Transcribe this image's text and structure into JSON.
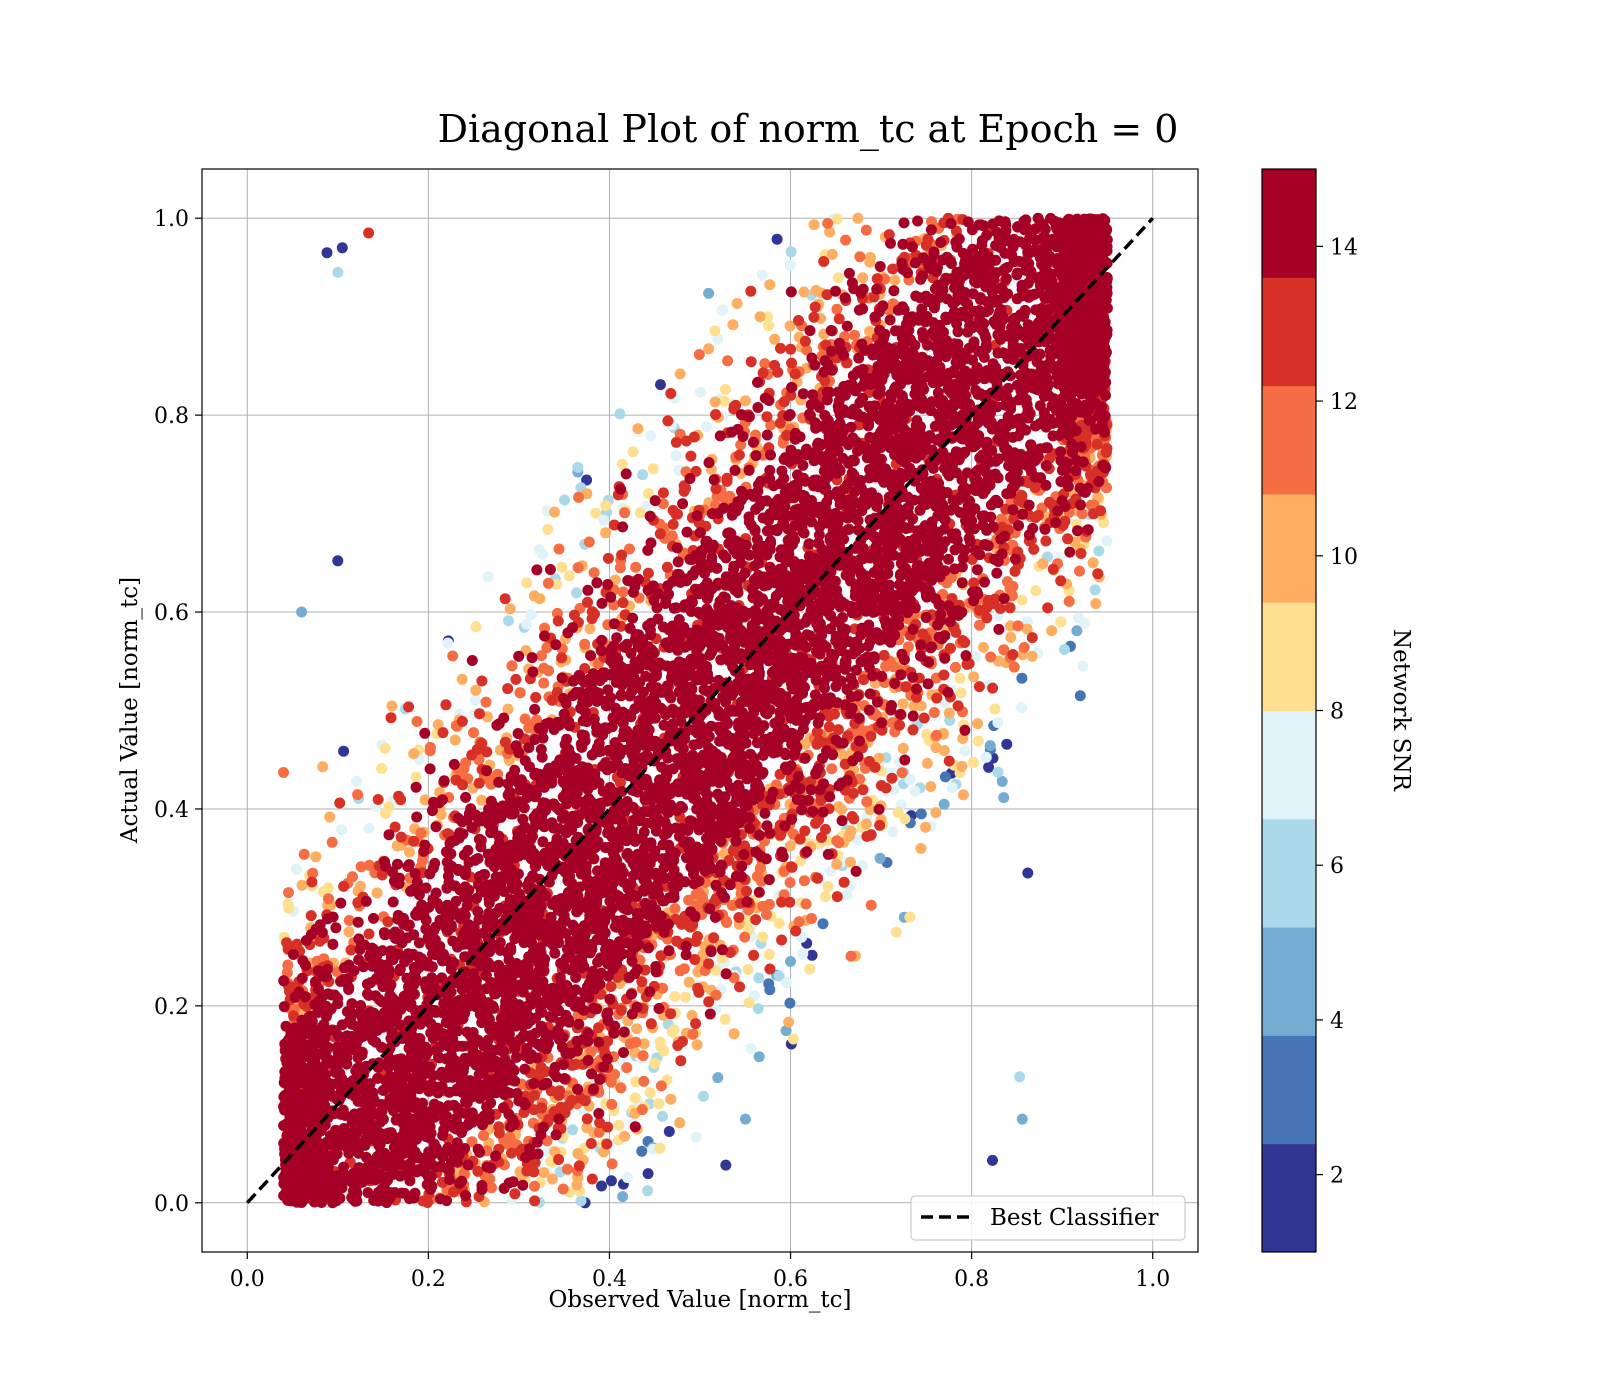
{
  "chart_data": {
    "type": "scatter",
    "title": "Diagonal Plot of norm_tc at Epoch = 0",
    "xlabel": "Observed Value [norm_tc]",
    "ylabel": "Actual Value [norm_tc]",
    "xlim": [
      -0.05,
      1.05
    ],
    "ylim": [
      -0.05,
      1.05
    ],
    "x_ticks": [
      0.0,
      0.2,
      0.4,
      0.6,
      0.8,
      1.0
    ],
    "y_ticks": [
      0.0,
      0.2,
      0.4,
      0.6,
      0.8,
      1.0
    ],
    "x_tick_labels": [
      "0.0",
      "0.2",
      "0.4",
      "0.6",
      "0.8",
      "1.0"
    ],
    "y_tick_labels": [
      "0.0",
      "0.2",
      "0.4",
      "0.6",
      "0.8",
      "1.0"
    ],
    "grid": true,
    "reference_line": {
      "label": "Best Classifier",
      "x": [
        0.0,
        1.0
      ],
      "y": [
        0.0,
        1.0
      ],
      "style": "dashed",
      "color": "#000000"
    },
    "legend": {
      "placement": "lower-right",
      "entries": [
        "Best Classifier"
      ]
    },
    "colorbar": {
      "label": "Network SNR",
      "range": [
        1,
        15
      ],
      "ticks": [
        2,
        4,
        6,
        8,
        10,
        12,
        14
      ],
      "tick_labels": [
        "2",
        "4",
        "6",
        "8",
        "10",
        "12",
        "14"
      ],
      "colors": [
        "#313695",
        "#4575b4",
        "#74add1",
        "#abd9e9",
        "#e0f3f8",
        "#fee090",
        "#fdae61",
        "#f46d43",
        "#d73027",
        "#a50026"
      ]
    },
    "point_cloud": {
      "description_of_data": "norm_tc observed vs actual, colored by network SNR",
      "x_range": [
        0.04,
        0.95
      ],
      "y_range": [
        0.0,
        1.0
      ],
      "high_snr_band_half_width": 0.15,
      "low_snr_band_half_width": 0.43,
      "approx_point_count": 9000,
      "outliers": [
        {
          "x": 0.06,
          "y": 0.6,
          "snr": 5
        },
        {
          "x": 0.92,
          "y": 0.515,
          "snr": 3
        },
        {
          "x": 0.1,
          "y": 0.945,
          "snr": 6
        },
        {
          "x": 0.1,
          "y": 0.652,
          "snr": 1
        },
        {
          "x": 0.088,
          "y": 0.965,
          "snr": 1
        },
        {
          "x": 0.105,
          "y": 0.97,
          "snr": 1
        },
        {
          "x": 0.862,
          "y": 0.335,
          "snr": 2
        },
        {
          "x": 0.856,
          "y": 0.085,
          "snr": 4
        },
        {
          "x": 0.823,
          "y": 0.043,
          "snr": 1
        },
        {
          "x": 0.853,
          "y": 0.128,
          "snr": 6
        },
        {
          "x": 0.04,
          "y": 0.437,
          "snr": 11
        },
        {
          "x": 0.134,
          "y": 0.985,
          "snr": 13
        }
      ]
    }
  }
}
